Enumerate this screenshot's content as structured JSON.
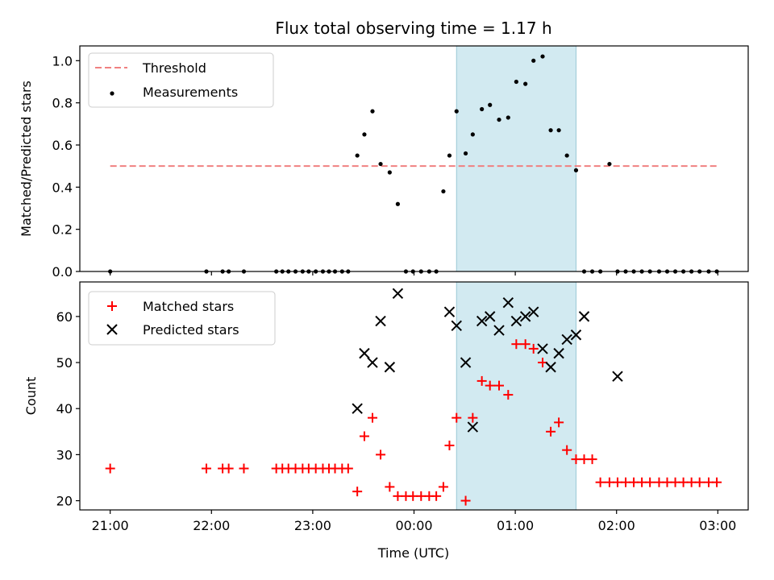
{
  "chart_data": {
    "type": "scatter",
    "title": "Flux total observing time = 1.17 h",
    "colors": {
      "threshold": "#f08080",
      "measurements": "#000000",
      "matched": "#ff0000",
      "predicted": "#000000",
      "highlight": "#add8e6"
    },
    "xaxis": {
      "label": "Time (UTC)",
      "range": [
        -0.3,
        6.3
      ],
      "ticks": [
        {
          "value": 0,
          "label": "21:00"
        },
        {
          "value": 1,
          "label": "22:00"
        },
        {
          "value": 2,
          "label": "23:00"
        },
        {
          "value": 3,
          "label": "00:00"
        },
        {
          "value": 4,
          "label": "01:00"
        },
        {
          "value": 5,
          "label": "02:00"
        },
        {
          "value": 6,
          "label": "03:00"
        }
      ]
    },
    "highlight_span": [
      3.42,
      4.6
    ],
    "top_panel": {
      "ylabel": "Matched/Predicted stars",
      "ylim": [
        0,
        1.07
      ],
      "yticks": [
        {
          "value": 0,
          "label": "0.0"
        },
        {
          "value": 0.2,
          "label": "0.2"
        },
        {
          "value": 0.4,
          "label": "0.4"
        },
        {
          "value": 0.6,
          "label": "0.6"
        },
        {
          "value": 0.8,
          "label": "0.8"
        },
        {
          "value": 1.0,
          "label": "1.0"
        }
      ],
      "legend": [
        {
          "label": "Threshold",
          "marker": "dash"
        },
        {
          "label": "Measurements",
          "marker": "dot"
        }
      ],
      "threshold": {
        "value": 0.5,
        "x_range": [
          0,
          6
        ]
      },
      "measurements": {
        "x": [
          0,
          0.95,
          1.11,
          1.17,
          1.32,
          1.64,
          1.7,
          1.76,
          1.83,
          1.9,
          1.96,
          2.03,
          2.1,
          2.16,
          2.22,
          2.29,
          2.35,
          2.44,
          2.51,
          2.59,
          2.67,
          2.76,
          2.84,
          2.92,
          2.99,
          3.07,
          3.15,
          3.22,
          3.29,
          3.35,
          3.42,
          3.51,
          3.58,
          3.67,
          3.75,
          3.84,
          3.93,
          4.01,
          4.1,
          4.18,
          4.27,
          4.35,
          4.43,
          4.51,
          4.6,
          4.68,
          4.76,
          4.84,
          4.93,
          5.01,
          5.09,
          5.17,
          5.25,
          5.33,
          5.42,
          5.5,
          5.58,
          5.66,
          5.74,
          5.82,
          5.91,
          5.99
        ],
        "y": [
          0,
          0,
          0,
          0,
          0,
          0,
          0,
          0,
          0,
          0,
          0,
          0,
          0,
          0,
          0,
          0,
          0,
          0.55,
          0.65,
          0.76,
          0.51,
          0.47,
          0.32,
          0,
          0,
          0,
          0,
          0,
          0.38,
          0.55,
          0.76,
          0.56,
          0.65,
          0.77,
          0.79,
          0.72,
          0.73,
          0.9,
          0.89,
          1.0,
          1.02,
          0.67,
          0.67,
          0.55,
          0.48,
          0,
          0,
          0,
          0.51,
          0,
          0,
          0,
          0,
          0,
          0,
          0,
          0,
          0,
          0,
          0,
          0,
          0
        ]
      }
    },
    "bottom_panel": {
      "ylabel": "Count",
      "ylim": [
        18,
        67.5
      ],
      "yticks": [
        {
          "value": 20,
          "label": "20"
        },
        {
          "value": 30,
          "label": "30"
        },
        {
          "value": 40,
          "label": "40"
        },
        {
          "value": 50,
          "label": "50"
        },
        {
          "value": 60,
          "label": "60"
        }
      ],
      "legend": [
        {
          "label": "Matched stars",
          "marker": "plus"
        },
        {
          "label": "Predicted stars",
          "marker": "x"
        }
      ],
      "matched": {
        "x": [
          0,
          0.95,
          1.11,
          1.17,
          1.32,
          1.64,
          1.7,
          1.76,
          1.83,
          1.9,
          1.96,
          2.03,
          2.1,
          2.16,
          2.22,
          2.29,
          2.35,
          2.44,
          2.51,
          2.59,
          2.67,
          2.76,
          2.84,
          2.92,
          2.99,
          3.07,
          3.15,
          3.22,
          3.29,
          3.35,
          3.42,
          3.51,
          3.58,
          3.67,
          3.75,
          3.84,
          3.93,
          4.01,
          4.1,
          4.18,
          4.27,
          4.35,
          4.43,
          4.51,
          4.6,
          4.68,
          4.76,
          4.84,
          4.93,
          5.01,
          5.09,
          5.17,
          5.25,
          5.33,
          5.42,
          5.5,
          5.58,
          5.66,
          5.74,
          5.82,
          5.91,
          5.99
        ],
        "y": [
          27,
          27,
          27,
          27,
          27,
          27,
          27,
          27,
          27,
          27,
          27,
          27,
          27,
          27,
          27,
          27,
          27,
          22,
          34,
          38,
          30,
          23,
          21,
          21,
          21,
          21,
          21,
          21,
          23,
          32,
          38,
          20,
          38,
          46,
          45,
          45,
          43,
          54,
          54,
          53,
          50,
          35,
          37,
          31,
          29,
          29,
          29,
          24,
          24,
          24,
          24,
          24,
          24,
          24,
          24,
          24,
          24,
          24,
          24,
          24,
          24,
          24
        ]
      },
      "predicted": {
        "x": [
          2.44,
          2.51,
          2.59,
          2.67,
          2.76,
          2.84,
          3.35,
          3.42,
          3.51,
          3.58,
          3.67,
          3.75,
          3.84,
          3.93,
          4.01,
          4.1,
          4.18,
          4.27,
          4.35,
          4.43,
          4.51,
          4.6,
          4.68,
          5.01
        ],
        "y": [
          40,
          52,
          50,
          59,
          49,
          65,
          61,
          58,
          50,
          36,
          59,
          60,
          57,
          63,
          59,
          60,
          61,
          53,
          49,
          52,
          55,
          56,
          60,
          47
        ]
      }
    }
  }
}
